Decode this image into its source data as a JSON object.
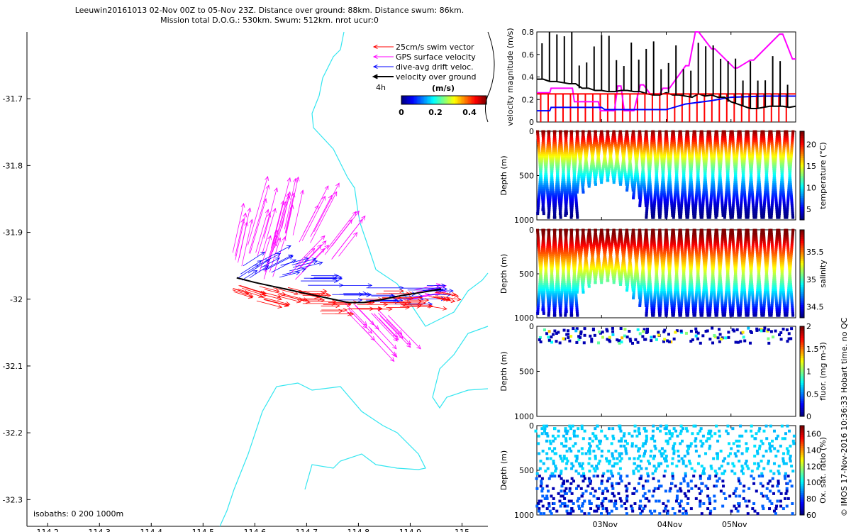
{
  "title": {
    "line1": "Leeuwin20161013 02-Nov 00Z to 05-Nov 23Z. Distance over ground: 88km. Distance swum: 86km.",
    "line2": "Mission total D.O.G.: 530km. Swum: 512km. nrot ucur:0"
  },
  "stamp": "© IMOS 17-Nov-2016 10:36:33 Hobart time. no QC",
  "colors": {
    "coast": "#33e6f0",
    "swim": "#ff0000",
    "gps": "#ff00ff",
    "drift": "#0000ff",
    "ground": "#000000"
  },
  "chart_data": [
    {
      "type": "map",
      "x_ticks": [
        "114.2",
        "114.3",
        "114.4",
        "114.5",
        "114.6",
        "114.7",
        "114.8",
        "114.9",
        "115"
      ],
      "y_ticks": [
        "-31.7",
        "-31.8",
        "-31.9",
        "-32",
        "-32.1",
        "-32.2",
        "-32.3"
      ],
      "xlim": [
        114.16,
        115.05
      ],
      "ylim": [
        -32.34,
        -31.6
      ],
      "isobaths_label": "isobaths: 0   200  1000m",
      "legend": {
        "items": [
          {
            "label": "25cm/s swim vector",
            "color": "#ff0000"
          },
          {
            "label": "GPS surface velocity",
            "color": "#ff00ff"
          },
          {
            "label": "dive-avg drift veloc.",
            "color": "#0000ff"
          },
          {
            "label": "velocity over ground",
            "color": "#000000"
          }
        ],
        "time_label": "4h",
        "cbar_label": "(m/s)",
        "cbar_ticks": [
          "0",
          "0.2",
          "0.4"
        ],
        "cbar_range": [
          0,
          0.5
        ]
      },
      "track": [
        [
          114.565,
          -31.968
        ],
        [
          114.6,
          -31.975
        ],
        [
          114.63,
          -31.98
        ],
        [
          114.66,
          -31.985
        ],
        [
          114.69,
          -31.99
        ],
        [
          114.72,
          -31.995
        ],
        [
          114.75,
          -32.0
        ],
        [
          114.78,
          -32.005
        ],
        [
          114.81,
          -32.005
        ],
        [
          114.85,
          -32.0
        ],
        [
          114.88,
          -31.995
        ],
        [
          114.92,
          -31.99
        ],
        [
          114.96,
          -31.985
        ]
      ],
      "gps_vectors": [
        [
          114.57,
          -31.94,
          0.02,
          0.07
        ],
        [
          114.6,
          -31.93,
          0.03,
          0.08
        ],
        [
          114.63,
          -31.92,
          0.03,
          0.09
        ],
        [
          114.66,
          -31.9,
          0.02,
          0.07
        ],
        [
          114.7,
          -31.91,
          0.04,
          0.06
        ],
        [
          114.75,
          -31.93,
          0.05,
          0.05
        ],
        [
          114.82,
          -32.03,
          0.06,
          -0.05
        ],
        [
          114.85,
          -32.02,
          0.05,
          -0.04
        ],
        [
          114.9,
          -31.99,
          0.06,
          0.01
        ],
        [
          114.62,
          -31.97,
          0.02,
          0.05
        ],
        [
          114.68,
          -31.96,
          0.05,
          0.04
        ],
        [
          114.78,
          -32.01,
          0.05,
          -0.04
        ]
      ],
      "drift_vectors": [
        [
          114.58,
          -31.96,
          0.04,
          0.02
        ],
        [
          114.62,
          -31.95,
          0.05,
          0.02
        ],
        [
          114.66,
          -31.96,
          0.05,
          0.01
        ],
        [
          114.7,
          -31.97,
          0.06,
          0.0
        ],
        [
          114.76,
          -31.99,
          0.06,
          0.0
        ],
        [
          114.82,
          -31.995,
          0.06,
          0.0
        ],
        [
          114.88,
          -31.995,
          0.06,
          0.0
        ],
        [
          114.93,
          -31.99,
          0.05,
          0.0
        ]
      ],
      "swim_vectors": [
        [
          114.57,
          -31.98,
          0.04,
          -0.01
        ],
        [
          114.61,
          -31.99,
          0.05,
          -0.01
        ],
        [
          114.65,
          -31.99,
          0.05,
          -0.01
        ],
        [
          114.7,
          -32.0,
          0.05,
          0.0
        ],
        [
          114.74,
          -32.01,
          0.05,
          0.0
        ],
        [
          114.79,
          -32.01,
          0.05,
          0.0
        ],
        [
          114.84,
          -32.0,
          0.05,
          0.0
        ],
        [
          114.89,
          -32.0,
          0.05,
          0.0
        ],
        [
          114.94,
          -32.0,
          0.04,
          -0.005
        ]
      ]
    },
    {
      "type": "line",
      "ylabel": "velocity magnitude (m/s)",
      "ylim": [
        0,
        0.8
      ],
      "y_ticks": [
        "0",
        "0.2",
        "0.4",
        "0.6",
        "0.8"
      ],
      "xlim": [
        0,
        4
      ],
      "series": [
        {
          "name": "GPS surface velocity",
          "color": "#ff00ff",
          "x": [
            0,
            0.2,
            0.22,
            0.55,
            0.58,
            0.95,
            0.98,
            1.2,
            1.25,
            1.3,
            1.35,
            1.5,
            1.6,
            1.65,
            1.75,
            1.9,
            1.95,
            2.05,
            2.3,
            2.35,
            2.45,
            2.5,
            2.7,
            2.75,
            3.05,
            3.1,
            3.3,
            3.35,
            3.75,
            3.8,
            3.95,
            4.0
          ],
          "y": [
            0.26,
            0.26,
            0.3,
            0.3,
            0.18,
            0.18,
            0.1,
            0.1,
            0.32,
            0.32,
            0.1,
            0.1,
            0.33,
            0.33,
            0.25,
            0.25,
            0.3,
            0.3,
            0.5,
            0.5,
            0.8,
            0.8,
            0.65,
            0.65,
            0.48,
            0.48,
            0.55,
            0.55,
            0.78,
            0.78,
            0.56,
            0.56
          ]
        },
        {
          "name": "dive-avg drift veloc.",
          "color": "#0000ff",
          "x": [
            0,
            0.2,
            0.22,
            1.0,
            1.05,
            2.0,
            2.3,
            2.7,
            3.0,
            3.5,
            4.0
          ],
          "y": [
            0.1,
            0.1,
            0.13,
            0.13,
            0.11,
            0.11,
            0.16,
            0.19,
            0.22,
            0.23,
            0.23
          ]
        },
        {
          "name": "velocity over ground",
          "color": "#000000",
          "x": [
            0,
            0.1,
            0.2,
            0.3,
            0.4,
            0.5,
            0.6,
            0.7,
            0.8,
            0.9,
            1.0,
            1.1,
            1.2,
            1.3,
            1.4,
            1.5,
            1.6,
            1.7,
            1.8,
            1.9,
            2.0,
            2.1,
            2.2,
            2.3,
            2.4,
            2.5,
            2.6,
            2.7,
            2.8,
            2.9,
            3.0,
            3.1,
            3.2,
            3.3,
            3.4,
            3.5,
            3.6,
            3.7,
            3.8,
            3.9,
            4.0
          ],
          "y": [
            0.38,
            0.38,
            0.36,
            0.36,
            0.35,
            0.34,
            0.34,
            0.3,
            0.3,
            0.28,
            0.28,
            0.27,
            0.27,
            0.28,
            0.28,
            0.27,
            0.27,
            0.25,
            0.24,
            0.24,
            0.26,
            0.24,
            0.24,
            0.23,
            0.22,
            0.25,
            0.23,
            0.24,
            0.22,
            0.22,
            0.18,
            0.16,
            0.14,
            0.12,
            0.12,
            0.13,
            0.14,
            0.14,
            0.14,
            0.13,
            0.14
          ]
        },
        {
          "name": "25cm/s swim vector",
          "color": "#ff0000",
          "x": [
            0,
            4
          ],
          "y": [
            0.25,
            0.25
          ]
        }
      ]
    },
    {
      "type": "scatter",
      "ylabel": "Depth (m)",
      "clabel": "temperature (°C)",
      "c_ticks": [
        "5",
        "10",
        "15",
        "20"
      ],
      "clim": [
        2.5,
        23
      ],
      "y_ticks": [
        "0",
        "500",
        "1000"
      ],
      "ylim": [
        0,
        1000
      ],
      "dives": [
        {
          "t": 0.06,
          "max": 950
        },
        {
          "t": 0.14,
          "max": 900
        },
        {
          "t": 0.23,
          "max": 980
        },
        {
          "t": 0.32,
          "max": 980
        },
        {
          "t": 0.41,
          "max": 930
        },
        {
          "t": 0.49,
          "max": 960
        },
        {
          "t": 0.58,
          "max": 990
        },
        {
          "t": 0.67,
          "max": 700
        },
        {
          "t": 0.76,
          "max": 630
        },
        {
          "t": 0.86,
          "max": 600
        },
        {
          "t": 0.95,
          "max": 580
        },
        {
          "t": 1.05,
          "max": 560
        },
        {
          "t": 1.14,
          "max": 560
        },
        {
          "t": 1.24,
          "max": 580
        },
        {
          "t": 1.34,
          "max": 620
        },
        {
          "t": 1.44,
          "max": 680
        },
        {
          "t": 1.54,
          "max": 760
        },
        {
          "t": 1.64,
          "max": 850
        },
        {
          "t": 1.74,
          "max": 980
        },
        {
          "t": 1.85,
          "max": 990
        },
        {
          "t": 1.95,
          "max": 990
        },
        {
          "t": 2.05,
          "max": 960
        },
        {
          "t": 2.16,
          "max": 990
        },
        {
          "t": 2.27,
          "max": 990
        },
        {
          "t": 2.38,
          "max": 990
        },
        {
          "t": 2.49,
          "max": 990
        },
        {
          "t": 2.6,
          "max": 990
        },
        {
          "t": 2.72,
          "max": 990
        },
        {
          "t": 2.83,
          "max": 960
        },
        {
          "t": 2.95,
          "max": 990
        },
        {
          "t": 3.07,
          "max": 990
        },
        {
          "t": 3.19,
          "max": 990
        },
        {
          "t": 3.31,
          "max": 990
        },
        {
          "t": 3.43,
          "max": 990
        },
        {
          "t": 3.55,
          "max": 990
        },
        {
          "t": 3.67,
          "max": 990
        },
        {
          "t": 3.79,
          "max": 990
        },
        {
          "t": 3.91,
          "max": 990
        }
      ]
    },
    {
      "type": "scatter",
      "ylabel": "Depth (m)",
      "clabel": "salinity",
      "c_ticks": [
        "34.5",
        "35",
        "35.5"
      ],
      "clim": [
        34.3,
        35.9
      ],
      "y_ticks": [
        "0",
        "500",
        "1000"
      ],
      "ylim": [
        0,
        1000
      ]
    },
    {
      "type": "scatter",
      "ylabel": "Depth (m)",
      "clabel": "fluor. (mg m-3)",
      "c_ticks": [
        "0",
        "0.5",
        "1",
        "1.5",
        "2"
      ],
      "clim": [
        0,
        2
      ],
      "y_ticks": [
        "0",
        "500",
        "1000"
      ],
      "ylim": [
        0,
        1000
      ]
    },
    {
      "type": "scatter",
      "ylabel": "Depth (m)",
      "clabel": "Ox. sat. ratio (%)",
      "c_ticks": [
        "60",
        "80",
        "100",
        "120",
        "140",
        "160"
      ],
      "clim": [
        60,
        170
      ],
      "y_ticks": [
        "0",
        "500",
        "1000"
      ],
      "ylim": [
        0,
        1000
      ],
      "x_ticks": [
        "03Nov",
        "04Nov",
        "05Nov"
      ],
      "x_tick_values": [
        1,
        2,
        3
      ]
    }
  ]
}
